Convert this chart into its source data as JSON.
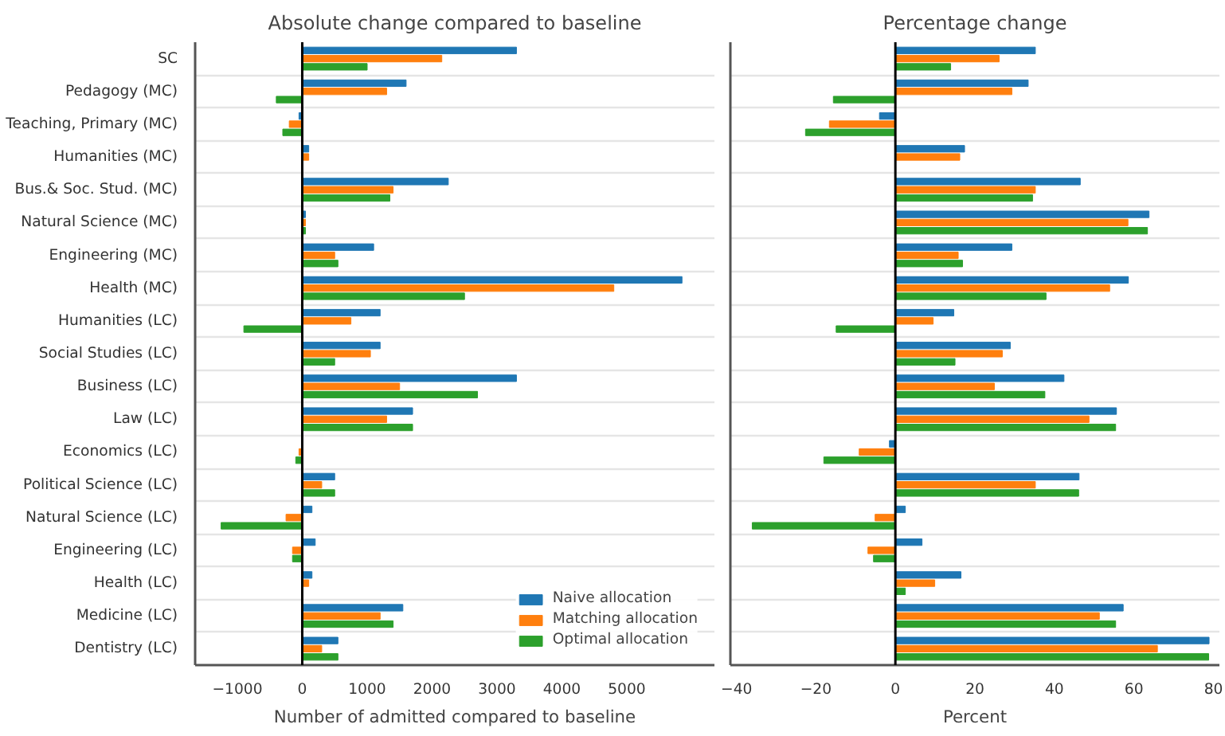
{
  "chart_data": [
    {
      "type": "bar",
      "orientation": "horizontal",
      "title": "Absolute change compared to baseline",
      "xlabel": "Number of admitted compared to baseline",
      "categories": [
        "SC",
        "Pedagogy (MC)",
        "Teaching, Primary (MC)",
        "Humanities (MC)",
        "Bus.& Soc. Stud. (MC)",
        "Natural Science (MC)",
        "Engineering (MC)",
        "Health (MC)",
        "Humanities (LC)",
        "Social Studies (LC)",
        "Business (LC)",
        "Law (LC)",
        "Economics (LC)",
        "Political Science (LC)",
        "Natural Science (LC)",
        "Engineering (LC)",
        "Health (LC)",
        "Medicine (LC)",
        "Dentistry (LC)"
      ],
      "series": [
        {
          "name": "Naive allocation",
          "color": "#1f77b4",
          "values": [
            3300,
            1600,
            -50,
            100,
            2250,
            50,
            1100,
            5850,
            1200,
            1200,
            3300,
            1700,
            0,
            500,
            150,
            200,
            150,
            1550,
            550
          ]
        },
        {
          "name": "Matching allocation",
          "color": "#ff7f0e",
          "values": [
            2150,
            1300,
            -200,
            100,
            1400,
            50,
            500,
            4800,
            750,
            1050,
            1500,
            1300,
            -50,
            300,
            -250,
            -150,
            100,
            1200,
            300
          ]
        },
        {
          "name": "Optimal allocation",
          "color": "#2ca02c",
          "values": [
            1000,
            -400,
            -300,
            0,
            1350,
            50,
            550,
            2500,
            -900,
            500,
            2700,
            1700,
            -100,
            500,
            -1250,
            -150,
            0,
            1400,
            550
          ]
        }
      ],
      "xlim": [
        -1650,
        6350
      ],
      "xticks": [
        {
          "value": -1000,
          "label": "−1000"
        },
        0,
        1000,
        2000,
        3000,
        4000,
        5000
      ],
      "ref_lines": [
        {
          "axis": "x",
          "value": 0,
          "color": "#000000"
        }
      ],
      "grid": "y",
      "legend": "bottom right"
    },
    {
      "type": "bar",
      "orientation": "horizontal",
      "title": "Percentage change",
      "xlabel": "Percent",
      "categories": [
        null,
        null,
        null,
        null,
        null,
        null,
        null,
        null,
        null,
        null,
        null,
        null,
        null,
        null,
        null,
        null,
        null,
        null,
        null
      ],
      "series": [
        {
          "color": "#1f77b4",
          "values": [
            35.2,
            33.4,
            -4.0,
            17.4,
            46.5,
            63.8,
            29.3,
            58.6,
            14.7,
            28.9,
            42.4,
            55.6,
            -1.5,
            46.2,
            2.5,
            6.7,
            16.5,
            57.3,
            78.9
          ]
        },
        {
          "color": "#ff7f0e",
          "values": [
            26.1,
            29.3,
            -16.6,
            16.2,
            35.2,
            58.5,
            15.8,
            53.9,
            9.5,
            26.9,
            24.9,
            48.7,
            -9.1,
            35.2,
            -5.1,
            -6.9,
            9.9,
            51.3,
            65.9
          ]
        },
        {
          "color": "#2ca02c",
          "values": [
            13.9,
            -15.6,
            -22.6,
            0,
            34.5,
            63.4,
            16.9,
            37.9,
            -14.9,
            15.0,
            37.6,
            55.4,
            -18.0,
            46.1,
            -36.0,
            -5.5,
            2.5,
            55.4,
            78.8
          ]
        }
      ],
      "xlim": [
        -41.5,
        81.5
      ],
      "xticks": [
        {
          "value": -40,
          "label": "−40"
        },
        {
          "value": -20,
          "label": "−20"
        },
        0,
        20,
        40,
        60,
        80
      ],
      "ref_lines": [
        {
          "axis": "x",
          "value": 0,
          "color": "#000000"
        }
      ],
      "grid": "y",
      "tick_labels": "x"
    }
  ]
}
